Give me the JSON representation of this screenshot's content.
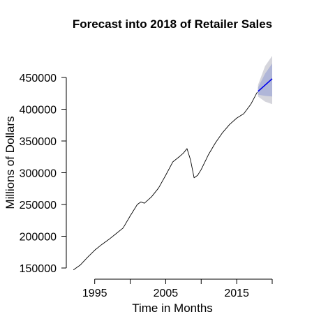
{
  "chart_data": {
    "type": "line",
    "title": "Forecast into 2018 of Retailer Sales",
    "xlabel": "Time in Months",
    "ylabel": "Millions of Dollars",
    "xlim": [
      1991,
      2020
    ],
    "ylim": [
      150000,
      450000
    ],
    "x_ticks": [
      1995,
      2005,
      2015
    ],
    "x_tick_labels": [
      "1995",
      "2005",
      "2015"
    ],
    "y_ticks": [
      150000,
      200000,
      250000,
      300000,
      350000,
      400000,
      450000
    ],
    "y_tick_labels": [
      "150000",
      "200000",
      "250000",
      "300000",
      "350000",
      "400000",
      "450000"
    ],
    "grid": false,
    "legend": "none",
    "series": [
      {
        "role": "observed",
        "color": "#000000",
        "x": [
          1992.0,
          1993.0,
          1994.0,
          1995.0,
          1996.0,
          1997.0,
          1998.0,
          1999.0,
          2000.0,
          2001.0,
          2001.5,
          2002.0,
          2003.0,
          2004.0,
          2005.0,
          2006.0,
          2007.0,
          2007.5,
          2008.0,
          2008.5,
          2009.0,
          2009.5,
          2010.0,
          2011.0,
          2012.0,
          2013.0,
          2014.0,
          2015.0,
          2016.0,
          2017.0,
          2017.9
        ],
        "y": [
          147000,
          155000,
          167000,
          178000,
          187000,
          195000,
          204000,
          213000,
          232000,
          250000,
          254000,
          252000,
          262000,
          276000,
          296000,
          317000,
          326000,
          331000,
          338000,
          320000,
          292000,
          296000,
          305000,
          328000,
          347000,
          363000,
          376000,
          386000,
          393000,
          408000,
          427000
        ]
      },
      {
        "role": "forecast",
        "color": "#0000ee",
        "x": [
          2018.0,
          2019.0,
          2020.0
        ],
        "y": [
          428000,
          438000,
          448000
        ]
      }
    ],
    "intervals": [
      {
        "level": "95%",
        "color": "#d5d5dc",
        "x": [
          2018.0,
          2019.0,
          2020.0
        ],
        "lower": [
          420000,
          412000,
          408000
        ],
        "upper": [
          438000,
          468000,
          484000
        ]
      },
      {
        "level": "80%",
        "color": "#b0b6d8",
        "x": [
          2018.0,
          2019.0,
          2020.0
        ],
        "lower": [
          423000,
          421000,
          420000
        ],
        "upper": [
          434000,
          456000,
          472000
        ]
      }
    ]
  }
}
